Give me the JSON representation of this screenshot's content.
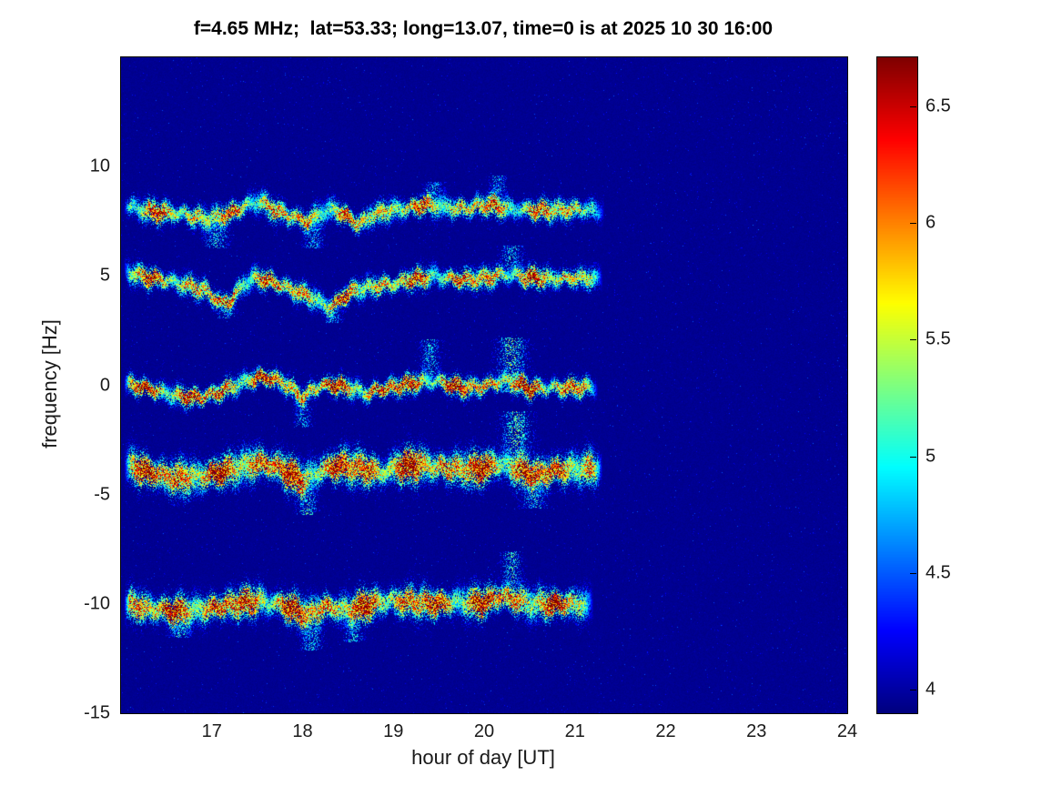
{
  "chart_data": {
    "type": "heatmap",
    "title": "f=4.65 MHz;  lat=53.33; long=13.07, time=0 is at 2025 10 30 16:00",
    "xlabel": "hour of day [UT]",
    "ylabel": "frequency [Hz]",
    "xlim": [
      16,
      24
    ],
    "ylim": [
      -15,
      15
    ],
    "x_ticks": [
      17,
      18,
      19,
      20,
      21,
      22,
      23,
      24
    ],
    "y_ticks": [
      10,
      5,
      0,
      -5,
      -10,
      -15
    ],
    "colorbar_ticks": [
      4,
      4.5,
      5,
      5.5,
      6,
      6.5
    ],
    "clim": [
      3.9,
      6.71
    ],
    "colormap": "jet",
    "grid": false,
    "background_value": 3.95,
    "traces": [
      {
        "name": "band +8 Hz",
        "sigma": 0.32,
        "peak": 6.15,
        "start": 16.03,
        "end": 21.32,
        "seed": 3,
        "path": [
          [
            16.03,
            8.3
          ],
          [
            16.2,
            8.05
          ],
          [
            16.45,
            7.9
          ],
          [
            16.7,
            7.85
          ],
          [
            16.95,
            7.6
          ],
          [
            17.15,
            7.8
          ],
          [
            17.3,
            8.1
          ],
          [
            17.5,
            8.45
          ],
          [
            17.65,
            8.1
          ],
          [
            17.85,
            7.75
          ],
          [
            18.05,
            7.5
          ],
          [
            18.2,
            7.9
          ],
          [
            18.35,
            8.05
          ],
          [
            18.5,
            7.7
          ],
          [
            18.62,
            7.35
          ],
          [
            18.75,
            7.8
          ],
          [
            18.95,
            8.0
          ],
          [
            19.15,
            8.1
          ],
          [
            19.35,
            8.3
          ],
          [
            19.55,
            8.15
          ],
          [
            19.8,
            8.1
          ],
          [
            20.05,
            8.3
          ],
          [
            20.3,
            8.05
          ],
          [
            20.6,
            8.0
          ],
          [
            21.0,
            8.05
          ],
          [
            21.32,
            8.0
          ]
        ]
      },
      {
        "name": "band +5 Hz",
        "sigma": 0.3,
        "peak": 6.25,
        "start": 16.03,
        "end": 21.3,
        "seed": 7,
        "path": [
          [
            16.03,
            5.25
          ],
          [
            16.25,
            5.0
          ],
          [
            16.5,
            4.8
          ],
          [
            16.75,
            4.55
          ],
          [
            16.95,
            4.3
          ],
          [
            17.1,
            3.7
          ],
          [
            17.2,
            3.9
          ],
          [
            17.35,
            4.7
          ],
          [
            17.5,
            4.95
          ],
          [
            17.7,
            4.7
          ],
          [
            17.9,
            4.35
          ],
          [
            18.1,
            4.05
          ],
          [
            18.3,
            3.55
          ],
          [
            18.45,
            4.1
          ],
          [
            18.6,
            4.4
          ],
          [
            18.8,
            4.55
          ],
          [
            19.0,
            4.65
          ],
          [
            19.2,
            4.85
          ],
          [
            19.45,
            5.0
          ],
          [
            19.7,
            4.85
          ],
          [
            19.95,
            4.85
          ],
          [
            20.2,
            5.1
          ],
          [
            20.45,
            5.0
          ],
          [
            20.7,
            4.9
          ],
          [
            21.0,
            4.9
          ],
          [
            21.3,
            4.9
          ]
        ]
      },
      {
        "name": "band 0 Hz",
        "sigma": 0.28,
        "peak": 6.5,
        "start": 16.03,
        "end": 21.25,
        "seed": 11,
        "path": [
          [
            16.03,
            0.05
          ],
          [
            16.3,
            -0.15
          ],
          [
            16.6,
            -0.45
          ],
          [
            16.85,
            -0.55
          ],
          [
            17.05,
            -0.35
          ],
          [
            17.25,
            0.0
          ],
          [
            17.45,
            0.3
          ],
          [
            17.6,
            0.4
          ],
          [
            17.8,
            0.1
          ],
          [
            18.0,
            -0.55
          ],
          [
            18.15,
            -0.1
          ],
          [
            18.3,
            0.05
          ],
          [
            18.5,
            -0.1
          ],
          [
            18.7,
            -0.35
          ],
          [
            18.85,
            -0.2
          ],
          [
            19.05,
            -0.05
          ],
          [
            19.25,
            0.15
          ],
          [
            19.45,
            0.2
          ],
          [
            19.65,
            0.0
          ],
          [
            19.9,
            -0.1
          ],
          [
            20.1,
            0.1
          ],
          [
            20.3,
            0.2
          ],
          [
            20.5,
            -0.15
          ],
          [
            20.75,
            -0.1
          ],
          [
            21.0,
            -0.1
          ],
          [
            21.25,
            -0.1
          ]
        ]
      },
      {
        "name": "band -4 Hz",
        "sigma": 0.5,
        "peak": 6.6,
        "start": 16.03,
        "end": 21.3,
        "seed": 17,
        "path": [
          [
            16.03,
            -3.6
          ],
          [
            16.3,
            -3.95
          ],
          [
            16.6,
            -4.25
          ],
          [
            16.9,
            -4.15
          ],
          [
            17.2,
            -3.85
          ],
          [
            17.5,
            -3.55
          ],
          [
            17.75,
            -3.75
          ],
          [
            18.0,
            -4.45
          ],
          [
            18.15,
            -3.95
          ],
          [
            18.35,
            -3.7
          ],
          [
            18.6,
            -3.75
          ],
          [
            18.85,
            -4.0
          ],
          [
            19.05,
            -3.7
          ],
          [
            19.3,
            -3.6
          ],
          [
            19.6,
            -3.8
          ],
          [
            19.9,
            -3.85
          ],
          [
            20.15,
            -3.6
          ],
          [
            20.35,
            -3.8
          ],
          [
            20.55,
            -4.15
          ],
          [
            20.8,
            -3.85
          ],
          [
            21.1,
            -3.8
          ],
          [
            21.3,
            -3.8
          ]
        ]
      },
      {
        "name": "band -10 Hz",
        "sigma": 0.45,
        "peak": 6.55,
        "start": 16.03,
        "end": 21.2,
        "seed": 23,
        "path": [
          [
            16.03,
            -10.0
          ],
          [
            16.3,
            -10.2
          ],
          [
            16.6,
            -10.35
          ],
          [
            16.9,
            -10.25
          ],
          [
            17.2,
            -10.0
          ],
          [
            17.5,
            -9.85
          ],
          [
            17.8,
            -10.05
          ],
          [
            18.05,
            -10.55
          ],
          [
            18.25,
            -10.1
          ],
          [
            18.5,
            -10.3
          ],
          [
            18.7,
            -10.05
          ],
          [
            18.95,
            -9.85
          ],
          [
            19.2,
            -9.9
          ],
          [
            19.45,
            -10.0
          ],
          [
            19.7,
            -9.9
          ],
          [
            19.95,
            -9.95
          ],
          [
            20.2,
            -9.6
          ],
          [
            20.45,
            -9.95
          ],
          [
            20.7,
            -10.0
          ],
          [
            21.0,
            -10.0
          ],
          [
            21.2,
            -10.0
          ]
        ]
      }
    ],
    "plumes": [
      {
        "hour": 17.05,
        "freq_top": 7.5,
        "freq_bottom": 6.3,
        "width": 0.1,
        "value": 4.9
      },
      {
        "hour": 18.12,
        "freq_top": 7.4,
        "freq_bottom": 6.3,
        "width": 0.08,
        "value": 4.85
      },
      {
        "hour": 19.45,
        "freq_top": 9.3,
        "freq_bottom": 8.2,
        "width": 0.08,
        "value": 4.8
      },
      {
        "hour": 20.15,
        "freq_top": 9.6,
        "freq_bottom": 8.3,
        "width": 0.07,
        "value": 4.8
      },
      {
        "hour": 17.15,
        "freq_top": 4.1,
        "freq_bottom": 3.1,
        "width": 0.08,
        "value": 4.9
      },
      {
        "hour": 18.33,
        "freq_top": 3.9,
        "freq_bottom": 2.9,
        "width": 0.07,
        "value": 4.85
      },
      {
        "hour": 20.3,
        "freq_top": 6.4,
        "freq_bottom": 5.2,
        "width": 0.09,
        "value": 4.9
      },
      {
        "hour": 18.0,
        "freq_top": -0.6,
        "freq_bottom": -1.9,
        "width": 0.07,
        "value": 4.85
      },
      {
        "hour": 19.4,
        "freq_top": 2.1,
        "freq_bottom": 0.3,
        "width": 0.08,
        "value": 4.85
      },
      {
        "hour": 20.3,
        "freq_top": 2.2,
        "freq_bottom": -0.3,
        "width": 0.12,
        "value": 5.1
      },
      {
        "hour": 20.35,
        "freq_top": -1.2,
        "freq_bottom": -3.4,
        "width": 0.12,
        "value": 5.1
      },
      {
        "hour": 18.05,
        "freq_top": -4.6,
        "freq_bottom": -5.9,
        "width": 0.08,
        "value": 5.0
      },
      {
        "hour": 20.55,
        "freq_top": -4.4,
        "freq_bottom": -5.6,
        "width": 0.1,
        "value": 4.95
      },
      {
        "hour": 20.3,
        "freq_top": -7.6,
        "freq_bottom": -9.2,
        "width": 0.08,
        "value": 5.0
      },
      {
        "hour": 16.65,
        "freq_top": -10.6,
        "freq_bottom": -11.5,
        "width": 0.1,
        "value": 4.9
      },
      {
        "hour": 18.1,
        "freq_top": -10.9,
        "freq_bottom": -12.1,
        "width": 0.09,
        "value": 4.9
      },
      {
        "hour": 18.55,
        "freq_top": -10.6,
        "freq_bottom": -11.7,
        "width": 0.09,
        "value": 4.85
      }
    ]
  }
}
